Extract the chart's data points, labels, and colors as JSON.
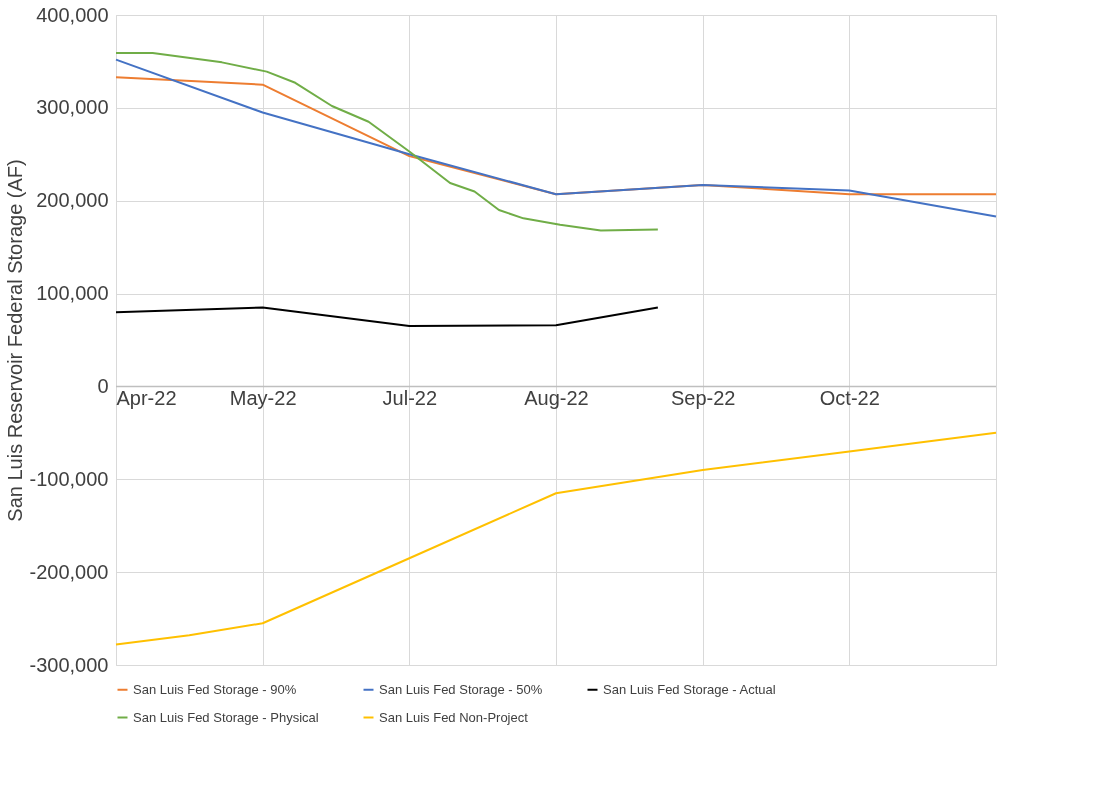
{
  "chart_data": {
    "type": "line",
    "ylabel": "San Luis Reservoir Federal Storage (AF)",
    "xlim": [
      "2022-04-25",
      "2022-11-27"
    ],
    "xticks": [
      {
        "value": "2022-04-25",
        "label": "Apr-22"
      },
      {
        "value": "2022-05-31",
        "label": "May-22"
      },
      {
        "value": "2022-07-06",
        "label": "Jul-22"
      },
      {
        "value": "2022-08-11",
        "label": "Aug-22"
      },
      {
        "value": "2022-09-16",
        "label": "Sep-22"
      },
      {
        "value": "2022-10-22",
        "label": "Oct-22"
      }
    ],
    "ylim": [
      -300000,
      400000
    ],
    "yticks": [
      {
        "value": -300000,
        "label": "-300,000"
      },
      {
        "value": -200000,
        "label": "-200,000"
      },
      {
        "value": -100000,
        "label": "-100,000"
      },
      {
        "value": 0,
        "label": "0"
      },
      {
        "value": 100000,
        "label": "100,000"
      },
      {
        "value": 200000,
        "label": "200,000"
      },
      {
        "value": 300000,
        "label": "300,000"
      },
      {
        "value": 400000,
        "label": "400,000"
      }
    ],
    "grid": true,
    "legend": "bottom",
    "line_style": "solid",
    "marker": "none",
    "series": [
      {
        "name": "San Luis Fed Storage - 90%",
        "color": "#ed7d31",
        "x": [
          "2022-04-25",
          "2022-05-31",
          "2022-07-06",
          "2022-08-11",
          "2022-09-16",
          "2022-10-22",
          "2022-11-27"
        ],
        "values": [
          333000,
          325000,
          248000,
          207000,
          217000,
          207000,
          207000
        ]
      },
      {
        "name": "San Luis Fed Storage - 50%",
        "color": "#4472c4",
        "x": [
          "2022-04-25",
          "2022-05-31",
          "2022-07-06",
          "2022-08-11",
          "2022-09-16",
          "2022-10-22",
          "2022-11-27"
        ],
        "values": [
          352000,
          295000,
          250000,
          207000,
          217000,
          211000,
          183000
        ]
      },
      {
        "name": "San Luis Fed Storage - Actual",
        "color": "#000000",
        "x": [
          "2022-04-25",
          "2022-05-31",
          "2022-07-06",
          "2022-08-11",
          "2022-09-05"
        ],
        "values": [
          80000,
          85000,
          65000,
          66000,
          85000
        ]
      },
      {
        "name": "San Luis Fed Storage - Physical",
        "color": "#70ad47",
        "x": [
          "2022-04-25",
          "2022-05-04",
          "2022-05-21",
          "2022-06-01",
          "2022-06-08",
          "2022-06-17",
          "2022-06-26",
          "2022-07-06",
          "2022-07-16",
          "2022-07-22",
          "2022-07-28",
          "2022-08-03",
          "2022-08-12",
          "2022-08-22",
          "2022-09-05"
        ],
        "values": [
          359000,
          359000,
          349000,
          339000,
          327000,
          302000,
          285000,
          253000,
          219000,
          210000,
          190000,
          181000,
          174000,
          168000,
          169000
        ]
      },
      {
        "name": "San Luis Fed Non-Project",
        "color": "#ffc000",
        "x": [
          "2022-04-25",
          "2022-05-13",
          "2022-05-31",
          "2022-07-06",
          "2022-08-11",
          "2022-09-16",
          "2022-10-22",
          "2022-11-27"
        ],
        "values": [
          -278000,
          -268000,
          -255000,
          -185000,
          -115000,
          -90000,
          -70000,
          -50000
        ]
      }
    ]
  }
}
